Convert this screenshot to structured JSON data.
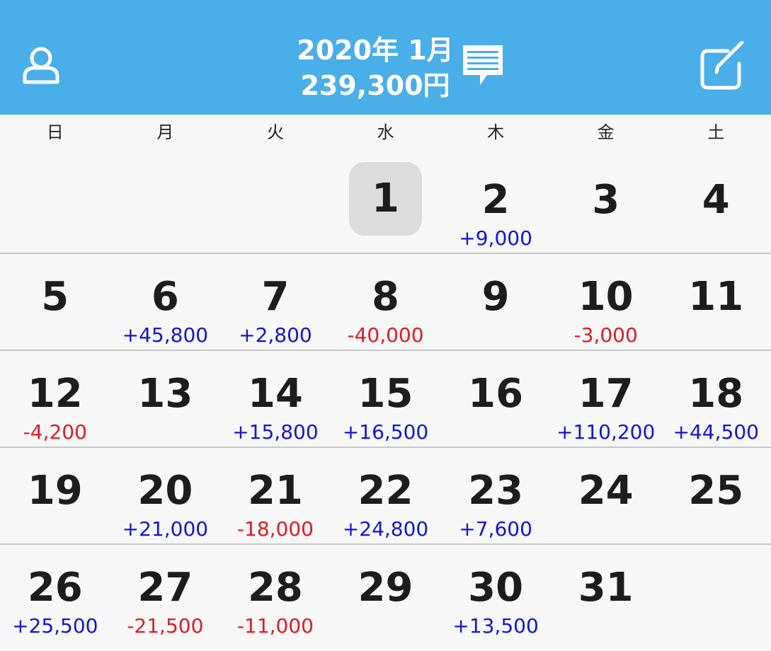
{
  "header": {
    "month_label": "2020年 1月",
    "total_label": "239,300円",
    "background_color": "#4aaee8"
  },
  "icons": {
    "user": "user-icon",
    "memo": "memo-icon",
    "edit": "edit-icon"
  },
  "weekdays": [
    "日",
    "月",
    "火",
    "水",
    "木",
    "金",
    "土"
  ],
  "colors": {
    "income": "#1414d4",
    "expense": "#e01b24",
    "today_bg": "#dcdcdc"
  },
  "weeks": [
    [
      {
        "day": "",
        "amount": ""
      },
      {
        "day": "",
        "amount": ""
      },
      {
        "day": "",
        "amount": ""
      },
      {
        "day": "1",
        "amount": "",
        "today": true
      },
      {
        "day": "2",
        "amount": "+9,000"
      },
      {
        "day": "3",
        "amount": ""
      },
      {
        "day": "4",
        "amount": ""
      }
    ],
    [
      {
        "day": "5",
        "amount": ""
      },
      {
        "day": "6",
        "amount": "+45,800"
      },
      {
        "day": "7",
        "amount": "+2,800"
      },
      {
        "day": "8",
        "amount": "-40,000"
      },
      {
        "day": "9",
        "amount": ""
      },
      {
        "day": "10",
        "amount": "-3,000"
      },
      {
        "day": "11",
        "amount": ""
      }
    ],
    [
      {
        "day": "12",
        "amount": "-4,200"
      },
      {
        "day": "13",
        "amount": ""
      },
      {
        "day": "14",
        "amount": "+15,800"
      },
      {
        "day": "15",
        "amount": "+16,500"
      },
      {
        "day": "16",
        "amount": ""
      },
      {
        "day": "17",
        "amount": "+110,200"
      },
      {
        "day": "18",
        "amount": "+44,500"
      }
    ],
    [
      {
        "day": "19",
        "amount": ""
      },
      {
        "day": "20",
        "amount": "+21,000"
      },
      {
        "day": "21",
        "amount": "-18,000"
      },
      {
        "day": "22",
        "amount": "+24,800"
      },
      {
        "day": "23",
        "amount": "+7,600"
      },
      {
        "day": "24",
        "amount": ""
      },
      {
        "day": "25",
        "amount": ""
      }
    ],
    [
      {
        "day": "26",
        "amount": "+25,500"
      },
      {
        "day": "27",
        "amount": "-21,500"
      },
      {
        "day": "28",
        "amount": "-11,000"
      },
      {
        "day": "29",
        "amount": ""
      },
      {
        "day": "30",
        "amount": "+13,500"
      },
      {
        "day": "31",
        "amount": ""
      },
      {
        "day": "",
        "amount": ""
      }
    ]
  ]
}
